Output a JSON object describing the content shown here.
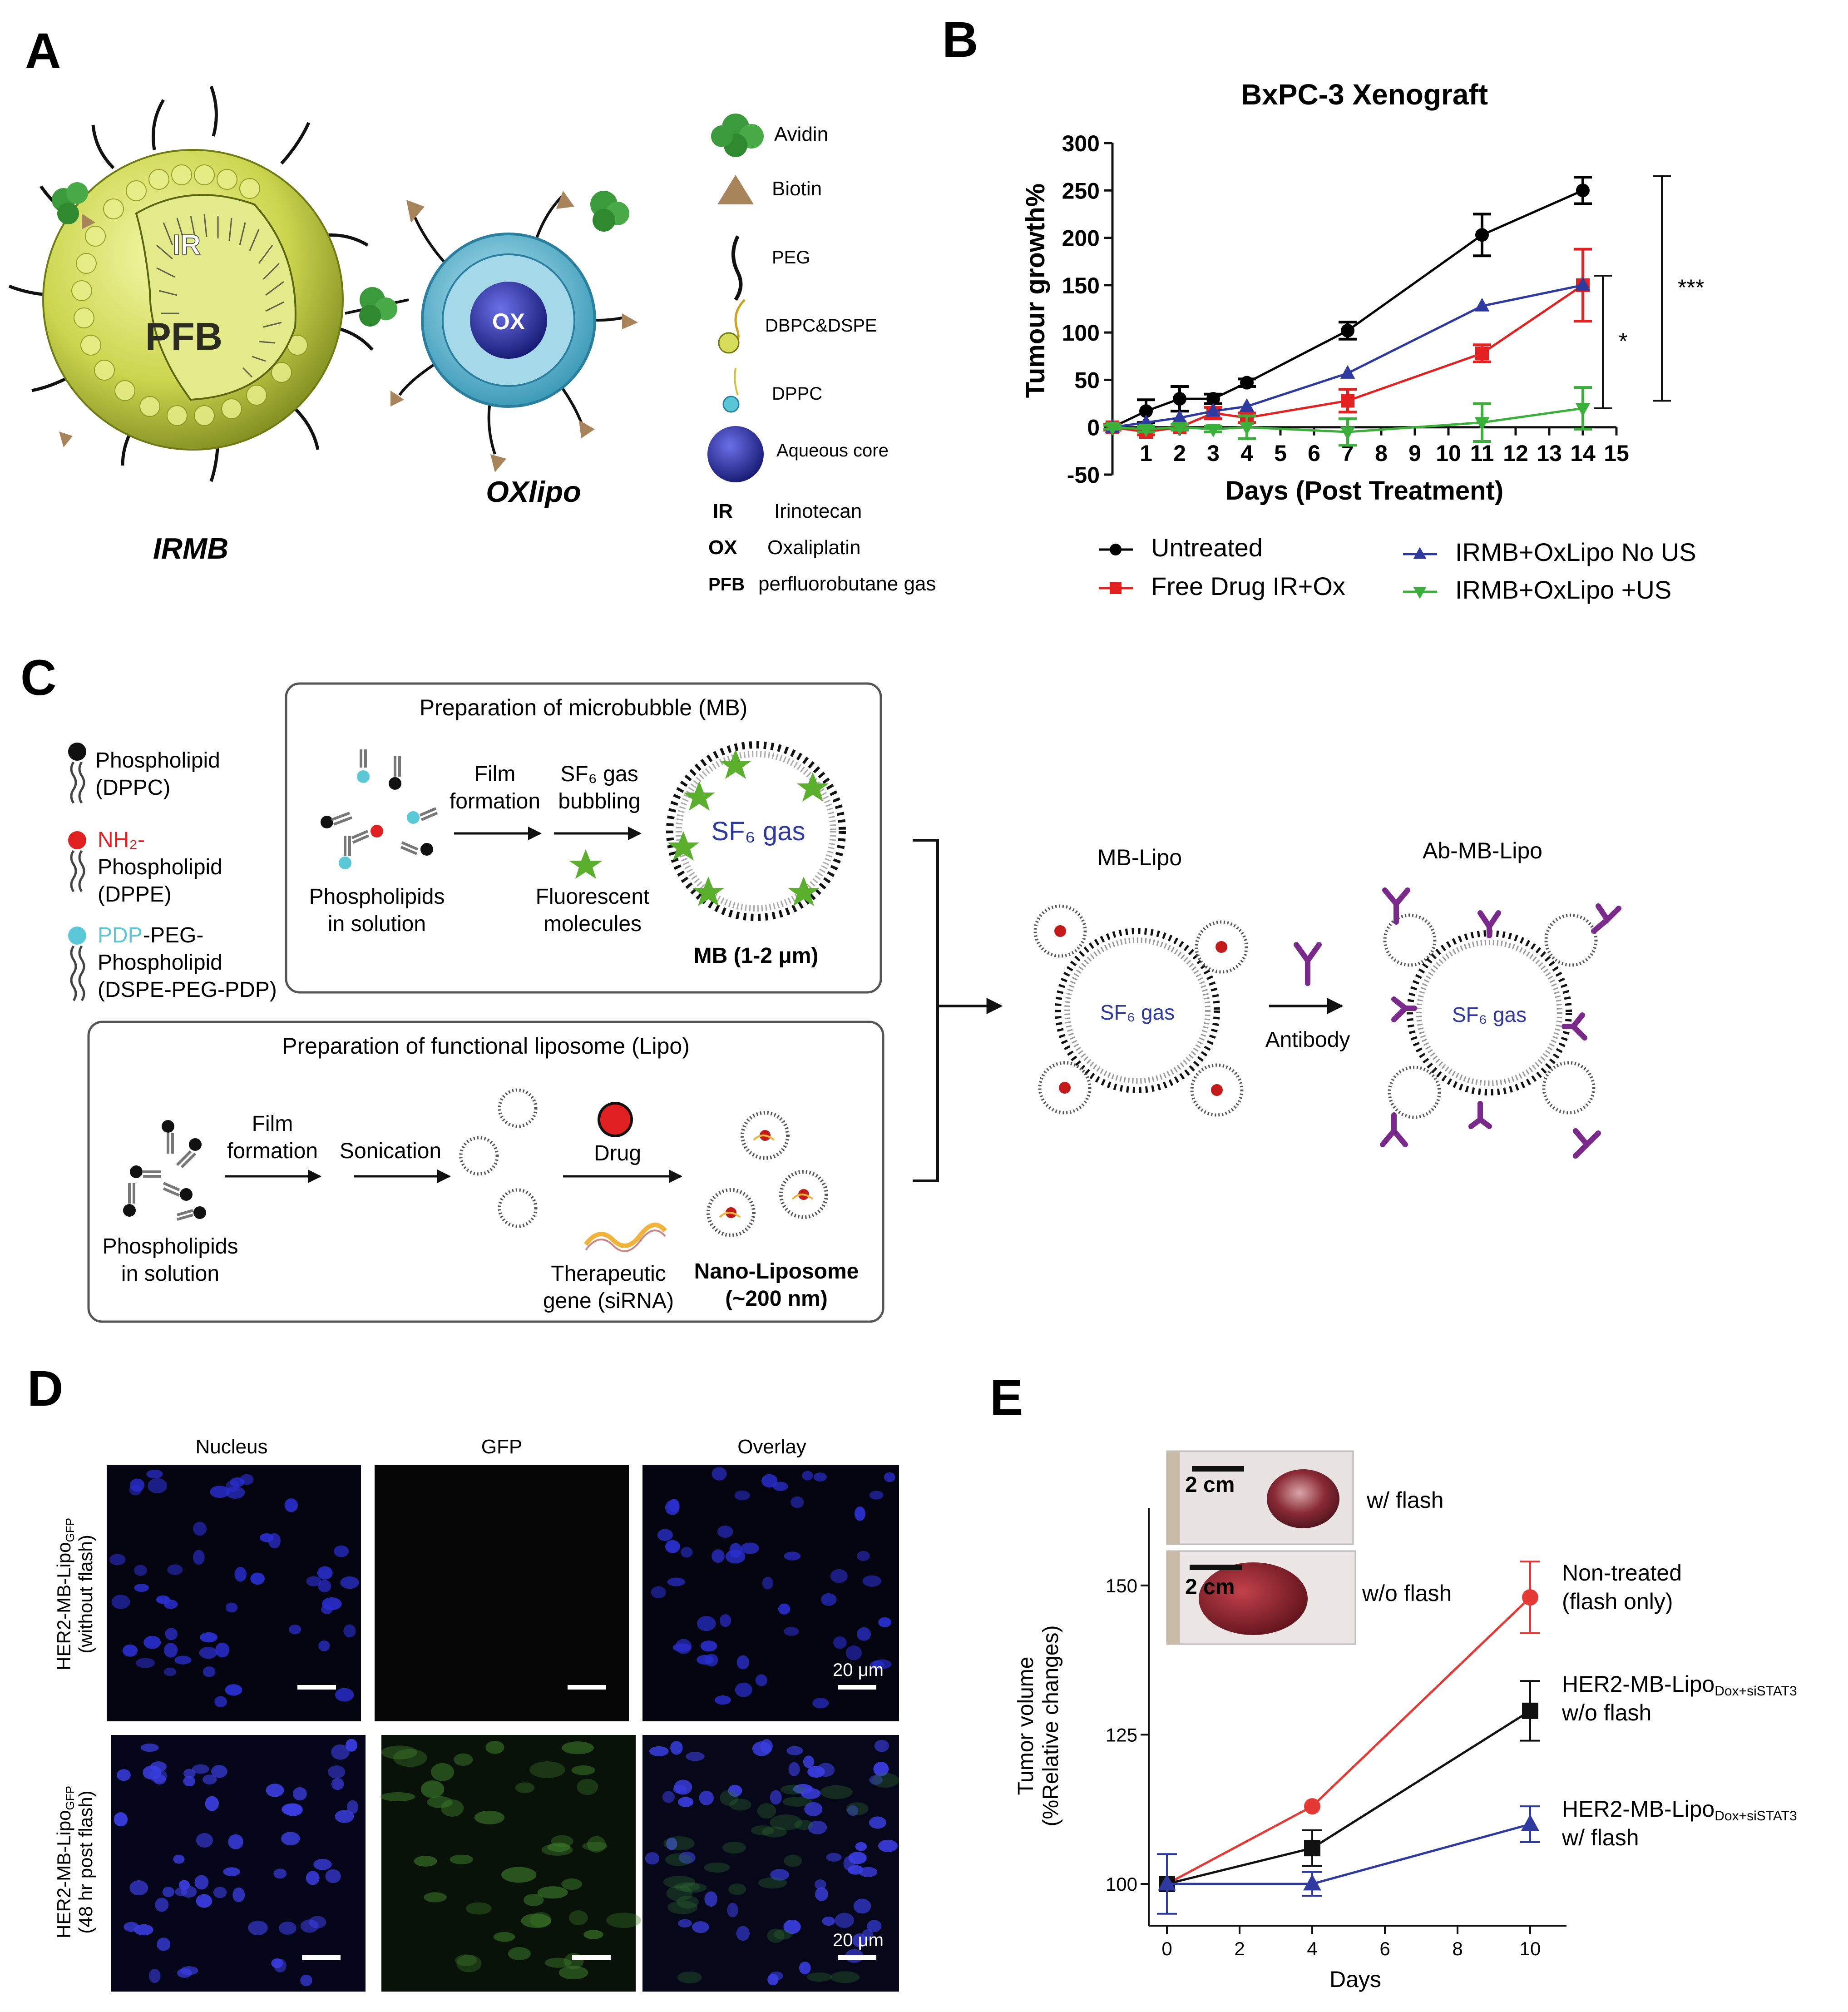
{
  "panels": {
    "a": "A",
    "b": "B",
    "c": "C",
    "d": "D",
    "e": "E"
  },
  "panel_a": {
    "irmb": {
      "inner_ir": "IR",
      "inner_pfb": "PFB",
      "caption": "IRMB"
    },
    "oxlipo": {
      "inner": "OX",
      "caption": "OXlipo"
    },
    "legend": [
      {
        "icon": "avidin-icon",
        "label": "Avidin"
      },
      {
        "icon": "biotin-icon",
        "label": "Biotin"
      },
      {
        "icon": "peg-icon",
        "label": "PEG"
      },
      {
        "icon": "dbpc-dspe-icon",
        "label": "DBPC&DSPE"
      },
      {
        "icon": "dppc-icon",
        "label": "DPPC"
      },
      {
        "icon": "aqueous-core-icon",
        "label": "Aqueous core"
      }
    ],
    "abbrev": [
      {
        "abbr": "IR",
        "full": "Irinotecan"
      },
      {
        "abbr": "OX",
        "full": "Oxaliplatin"
      },
      {
        "abbr": "PFB",
        "full": "perfluorobutane gas"
      }
    ],
    "colors": {
      "avidin": "#3b9a3b",
      "biotin": "#a8845a",
      "shell": "#d4dc5a",
      "core": "#2b2f9e",
      "lipo_shell": "#4fb7cf"
    }
  },
  "panel_b": {
    "chart_data": {
      "type": "line",
      "title": "BxPC-3 Xenograft",
      "xlabel": "Days (Post Treatment)",
      "ylabel": "Tumour growth%",
      "xlim": [
        0,
        15
      ],
      "ylim": [
        -50,
        300
      ],
      "xticks": [
        1,
        2,
        3,
        4,
        5,
        6,
        7,
        8,
        9,
        10,
        11,
        12,
        13,
        14,
        15
      ],
      "yticks": [
        -50,
        0,
        50,
        100,
        150,
        200,
        250,
        300
      ],
      "series": [
        {
          "name": "Untreated",
          "color": "#000000",
          "marker": "circle",
          "x": [
            0,
            1,
            2,
            3,
            4,
            7,
            11,
            14
          ],
          "y": [
            0,
            17,
            30,
            30,
            47,
            102,
            203,
            250
          ],
          "err": [
            3,
            12,
            13,
            5,
            4,
            9,
            22,
            14
          ]
        },
        {
          "name": "Free Drug IR+Ox",
          "color": "#e52020",
          "marker": "square",
          "x": [
            0,
            1,
            2,
            3,
            4,
            7,
            11,
            14
          ],
          "y": [
            0,
            -5,
            0,
            15,
            10,
            28,
            78,
            150
          ],
          "err": [
            3,
            3,
            3,
            6,
            5,
            12,
            9,
            38
          ]
        },
        {
          "name": "IRMB+OxLipo No US",
          "color": "#2e3aa0",
          "marker": "triangle-up",
          "x": [
            0,
            1,
            2,
            3,
            4,
            7,
            11,
            14
          ],
          "y": [
            0,
            5,
            10,
            17,
            22,
            57,
            128,
            150
          ],
          "err": [
            0,
            0,
            0,
            0,
            0,
            0,
            0,
            0
          ]
        },
        {
          "name": "IRMB+OxLipo +US",
          "color": "#3ab03a",
          "marker": "triangle-down",
          "x": [
            0,
            1,
            2,
            3,
            4,
            7,
            11,
            14
          ],
          "y": [
            0,
            -2,
            0,
            -2,
            0,
            -5,
            5,
            20
          ],
          "err": [
            2,
            3,
            3,
            3,
            12,
            14,
            20,
            22
          ]
        }
      ],
      "significance": [
        {
          "label": "*",
          "from": 20,
          "to": 160
        },
        {
          "label": "***",
          "from": 28,
          "to": 265
        }
      ],
      "legend_position": "bottom"
    }
  },
  "panel_c": {
    "legend": [
      {
        "color_label": "",
        "lines": [
          "Phospholipid",
          "(DPPC)"
        ],
        "dot": "#111111"
      },
      {
        "color_label": "NH₂-",
        "lines": [
          "Phospholipid",
          "(DPPE)"
        ],
        "dot": "#e02020"
      },
      {
        "color_label": "PDP",
        "lines": [
          "-PEG-",
          "Phospholipid",
          "(DSPE-PEG-PDP)"
        ],
        "dot": "#5bc8d8"
      }
    ],
    "mb_box": {
      "title": "Preparation of microbubble (MB)",
      "start_label": [
        "Phospholipids",
        "in solution"
      ],
      "step1": [
        "Film",
        "formation"
      ],
      "step2": [
        "SF₆ gas",
        "bubbling"
      ],
      "fluor": [
        "Fluorescent",
        "molecules"
      ],
      "bubble_text": "SF₆ gas",
      "result": "MB (1-2 μm)"
    },
    "lipo_box": {
      "title": "Preparation of functional liposome (Lipo)",
      "start_label": [
        "Phospholipids",
        "in solution"
      ],
      "step1": [
        "Film",
        "formation"
      ],
      "step2": "Sonication",
      "drug": "Drug",
      "gene": [
        "Therapeutic",
        "gene (siRNA)"
      ],
      "result": [
        "Nano-Liposome",
        "(~200 nm)"
      ]
    },
    "mb_lipo": {
      "title": "MB-Lipo",
      "gas": "SF₆ gas"
    },
    "antibody": "Antibody",
    "ab_mb_lipo": {
      "title": "Ab-MB-Lipo",
      "gas": "SF₆ gas"
    }
  },
  "panel_d": {
    "columns": [
      "Nucleus",
      "GFP",
      "Overlay"
    ],
    "rows": [
      {
        "label1": "HER2-MB-Lipo",
        "sub": "GFP",
        "label2": "(without flash)"
      },
      {
        "label1": "HER2-MB-Lipo",
        "sub": "GFP",
        "label2": "(48 hr post flash)"
      }
    ],
    "scale": "20 μm"
  },
  "panel_e": {
    "inset": {
      "scale": "2 cm",
      "top_label": "w/ flash",
      "bottom_label": "w/o flash"
    },
    "chart_data": {
      "type": "line",
      "title": "",
      "xlabel": "Days",
      "ylabel_lines": [
        "Tumor volume",
        "(%Relative changes)"
      ],
      "xlim": [
        -0.5,
        11
      ],
      "ylim": [
        93,
        163
      ],
      "xticks": [
        0,
        2,
        4,
        6,
        8,
        10
      ],
      "yticks": [
        100,
        125,
        150
      ],
      "series": [
        {
          "name": "Non-treated (flash only)",
          "label_lines": [
            "Non-treated",
            "(flash only)"
          ],
          "label_sub": "",
          "color": "#e53935",
          "marker": "circle",
          "x": [
            0,
            4,
            10
          ],
          "y": [
            100,
            113,
            148
          ],
          "err": [
            0,
            0,
            6
          ]
        },
        {
          "name": "HER2-MB-Lipo Dox+siSTAT3 w/o flash",
          "label_lines": [
            "HER2-MB-Lipo",
            "w/o flash"
          ],
          "label_sub": "Dox+siSTAT3",
          "color": "#111111",
          "marker": "square",
          "x": [
            0,
            4,
            10
          ],
          "y": [
            100,
            106,
            129
          ],
          "err": [
            0,
            3,
            5
          ]
        },
        {
          "name": "HER2-MB-Lipo Dox+siSTAT3 w/ flash",
          "label_lines": [
            "HER2-MB-Lipo",
            "w/ flash"
          ],
          "label_sub": "Dox+siSTAT3",
          "color": "#2e3aa0",
          "marker": "triangle-up",
          "x": [
            0,
            4,
            10
          ],
          "y": [
            100,
            100,
            110
          ],
          "err": [
            5,
            2,
            3
          ]
        }
      ]
    }
  }
}
